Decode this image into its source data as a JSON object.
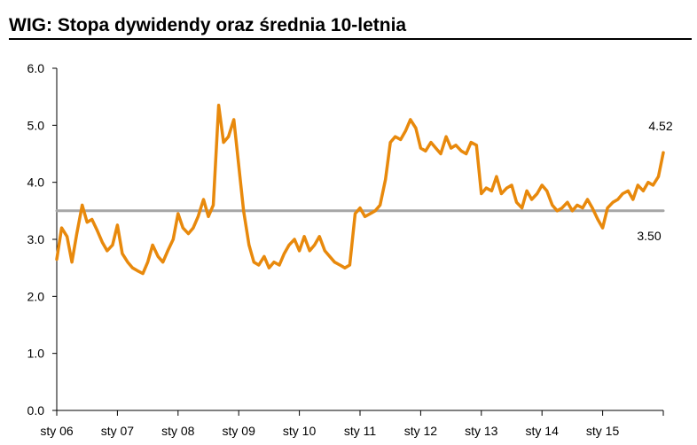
{
  "chart_data": {
    "type": "line",
    "title": "WIG: Stopa dywidendy oraz średnia 10-letnia",
    "xlabel": "",
    "ylabel": "",
    "ylim": [
      0,
      6
    ],
    "yticks": [
      "0.0",
      "1.0",
      "2.0",
      "3.0",
      "4.0",
      "5.0",
      "6.0"
    ],
    "xticks": [
      "sty 06",
      "sty 07",
      "sty 08",
      "sty 09",
      "sty 10",
      "sty 11",
      "sty 12",
      "sty 13",
      "sty 14",
      "sty 15"
    ],
    "grid": false,
    "legend": "none",
    "series": [
      {
        "color": "#E8890C",
        "x": [
          2006.0,
          2006.08,
          2006.17,
          2006.25,
          2006.33,
          2006.42,
          2006.5,
          2006.58,
          2006.67,
          2006.75,
          2006.83,
          2006.92,
          2007.0,
          2007.08,
          2007.17,
          2007.25,
          2007.33,
          2007.42,
          2007.5,
          2007.58,
          2007.67,
          2007.75,
          2007.83,
          2007.92,
          2008.0,
          2008.08,
          2008.17,
          2008.25,
          2008.33,
          2008.42,
          2008.5,
          2008.58,
          2008.67,
          2008.75,
          2008.83,
          2008.92,
          2009.0,
          2009.08,
          2009.17,
          2009.25,
          2009.33,
          2009.42,
          2009.5,
          2009.58,
          2009.67,
          2009.75,
          2009.83,
          2009.92,
          2010.0,
          2010.08,
          2010.17,
          2010.25,
          2010.33,
          2010.42,
          2010.5,
          2010.58,
          2010.67,
          2010.75,
          2010.83,
          2010.92,
          2011.0,
          2011.08,
          2011.17,
          2011.25,
          2011.33,
          2011.42,
          2011.5,
          2011.58,
          2011.67,
          2011.75,
          2011.83,
          2011.92,
          2012.0,
          2012.08,
          2012.17,
          2012.25,
          2012.33,
          2012.42,
          2012.5,
          2012.58,
          2012.67,
          2012.75,
          2012.83,
          2012.92,
          2013.0,
          2013.08,
          2013.17,
          2013.25,
          2013.33,
          2013.42,
          2013.5,
          2013.58,
          2013.67,
          2013.75,
          2013.83,
          2013.92,
          2014.0,
          2014.08,
          2014.17,
          2014.25,
          2014.33,
          2014.42,
          2014.5,
          2014.58,
          2014.67,
          2014.75,
          2014.83,
          2014.92,
          2015.0,
          2015.08,
          2015.17,
          2015.25,
          2015.33,
          2015.42,
          2015.5,
          2015.58,
          2015.67,
          2015.75,
          2015.83,
          2015.92,
          2016.0
        ],
        "y": [
          2.65,
          3.2,
          3.05,
          2.6,
          3.1,
          3.6,
          3.3,
          3.35,
          3.15,
          2.95,
          2.8,
          2.9,
          3.25,
          2.75,
          2.6,
          2.5,
          2.45,
          2.4,
          2.6,
          2.9,
          2.7,
          2.6,
          2.8,
          3.0,
          3.45,
          3.2,
          3.1,
          3.2,
          3.4,
          3.7,
          3.4,
          3.6,
          5.35,
          4.7,
          4.8,
          5.1,
          4.3,
          3.5,
          2.9,
          2.6,
          2.55,
          2.7,
          2.5,
          2.6,
          2.55,
          2.75,
          2.9,
          3.0,
          2.8,
          3.05,
          2.8,
          2.9,
          3.05,
          2.8,
          2.7,
          2.6,
          2.55,
          2.5,
          2.55,
          3.45,
          3.55,
          3.4,
          3.45,
          3.5,
          3.6,
          4.05,
          4.7,
          4.8,
          4.75,
          4.9,
          5.1,
          4.95,
          4.6,
          4.55,
          4.7,
          4.6,
          4.5,
          4.8,
          4.6,
          4.65,
          4.55,
          4.5,
          4.7,
          4.65,
          3.8,
          3.9,
          3.85,
          4.1,
          3.8,
          3.9,
          3.95,
          3.65,
          3.55,
          3.85,
          3.7,
          3.8,
          3.95,
          3.85,
          3.6,
          3.5,
          3.55,
          3.65,
          3.5,
          3.6,
          3.55,
          3.7,
          3.55,
          3.35,
          3.2,
          3.55,
          3.65,
          3.7,
          3.8,
          3.85,
          3.7,
          3.95,
          3.85,
          4.0,
          3.95,
          4.1,
          4.52
        ]
      },
      {
        "color": "#A6A6A6",
        "x": [
          2006.0,
          2016.0
        ],
        "y": [
          3.5,
          3.5
        ]
      }
    ],
    "annotations": [
      "4.52",
      "3.50"
    ]
  }
}
